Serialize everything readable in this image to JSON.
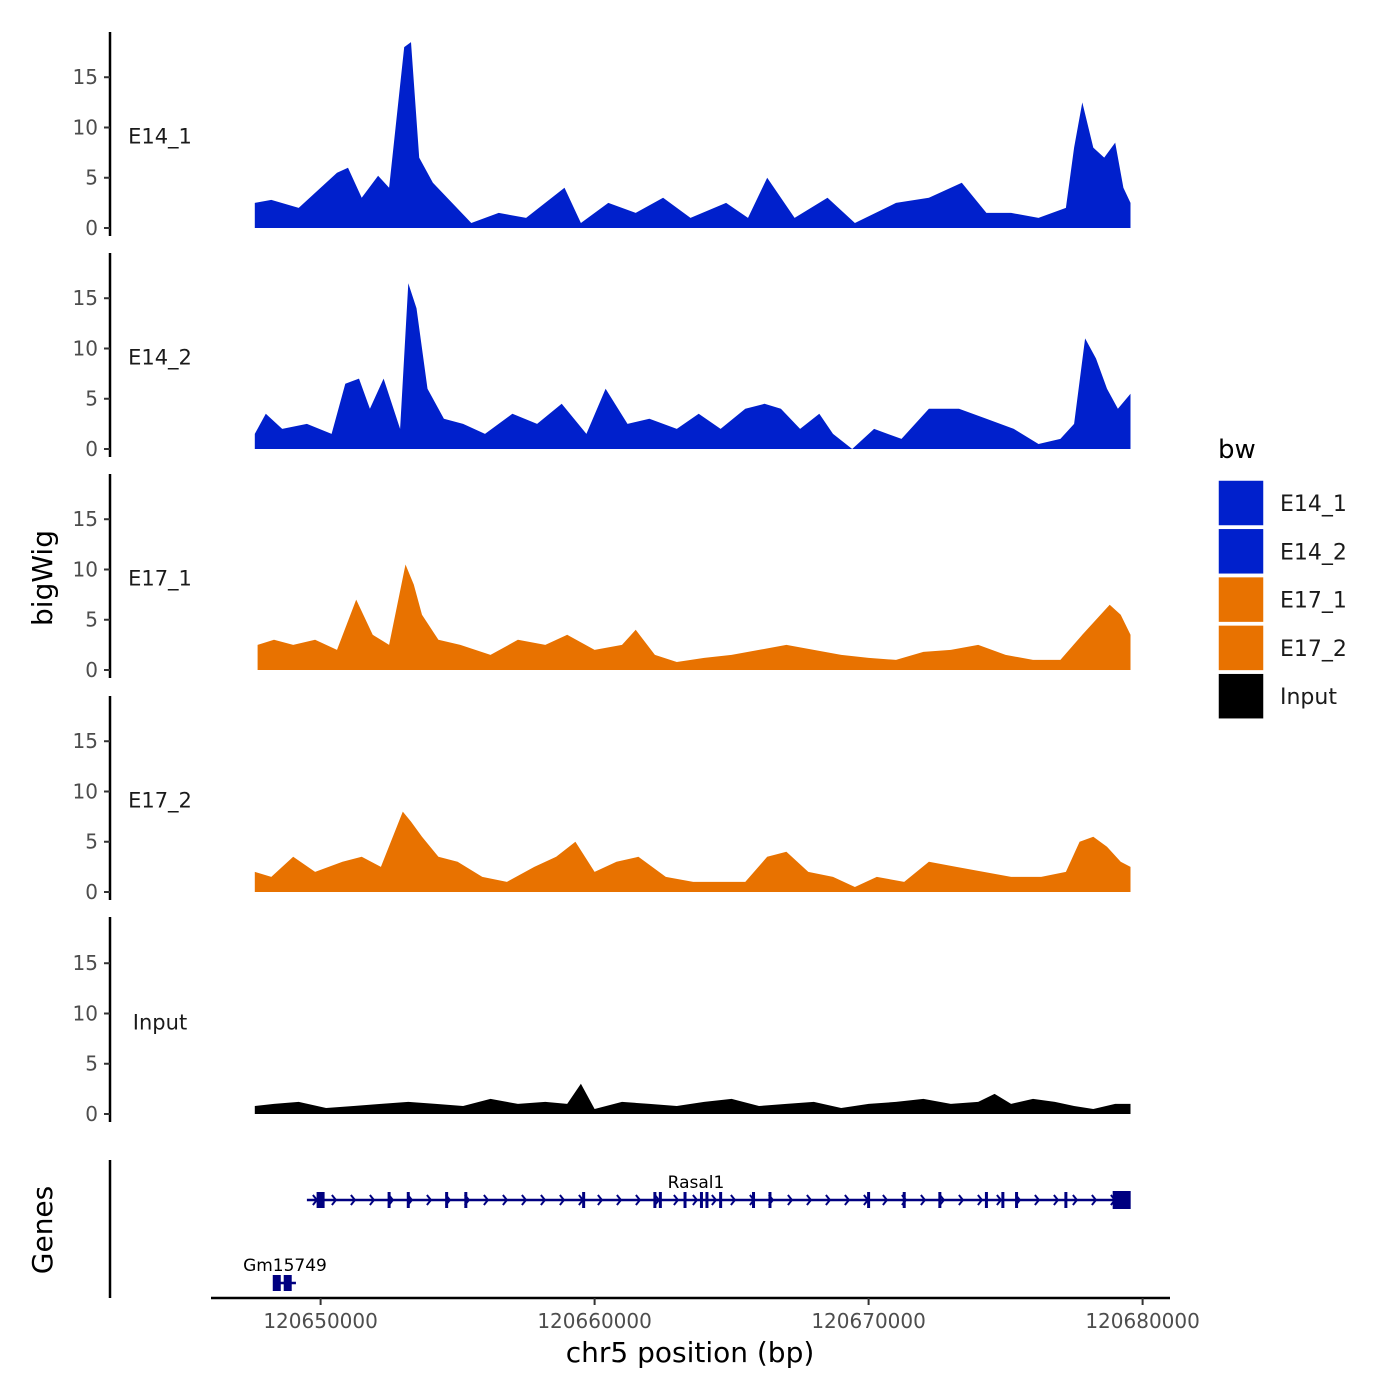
{
  "chart_data": {
    "type": "area",
    "subtype": "genome-track-plot",
    "xlabel": "chr5 position (bp)",
    "ylabel": "bigWig",
    "genes_label": "Genes",
    "xlim": [
      120646000,
      120681000
    ],
    "x_ticks": [
      120650000,
      120660000,
      120670000,
      120680000
    ],
    "x_tick_labels": [
      "120650000",
      "120660000",
      "120670000",
      "120680000"
    ],
    "ylim": [
      0,
      19.5
    ],
    "y_ticks": [
      0,
      5,
      10,
      15
    ],
    "y_tick_labels": [
      "0",
      "5",
      "10",
      "15"
    ],
    "legend": {
      "title": "bw",
      "entries": [
        {
          "label": "E14_1",
          "color": "#0020CC"
        },
        {
          "label": "E14_2",
          "color": "#0020CC"
        },
        {
          "label": "E17_1",
          "color": "#E87200"
        },
        {
          "label": "E17_2",
          "color": "#E87200"
        },
        {
          "label": "Input",
          "color": "#000000"
        }
      ]
    },
    "series": [
      {
        "name": "E14_1",
        "color": "#0020CC",
        "x": [
          120647600,
          120648200,
          120649200,
          120650600,
          120651000,
          120651500,
          120652100,
          120652500,
          120653050,
          120653300,
          120653600,
          120654100,
          120654800,
          120655500,
          120656500,
          120657500,
          120658900,
          120659500,
          120660500,
          120661500,
          120662500,
          120663500,
          120664800,
          120665600,
          120666300,
          120667300,
          120668500,
          120669500,
          120671000,
          120672200,
          120673400,
          120674300,
          120675200,
          120676200,
          120677200,
          120677500,
          120677800,
          120678200,
          120678600,
          120679000,
          120679300,
          120679560
        ],
        "y": [
          2.5,
          2.8,
          2.0,
          5.5,
          6.0,
          3.0,
          5.2,
          4.0,
          18.0,
          18.5,
          7.0,
          4.5,
          2.5,
          0.5,
          1.5,
          1.0,
          4.0,
          0.5,
          2.5,
          1.5,
          3.0,
          1.0,
          2.5,
          1.0,
          5.0,
          1.0,
          3.0,
          0.5,
          2.5,
          3.0,
          4.5,
          1.5,
          1.5,
          1.0,
          2.0,
          8.0,
          12.5,
          8.0,
          7.0,
          8.5,
          4.0,
          2.5
        ]
      },
      {
        "name": "E14_2",
        "color": "#0020CC",
        "x": [
          120647600,
          120648000,
          120648600,
          120649500,
          120650400,
          120650900,
          120651400,
          120651800,
          120652300,
          120652900,
          120653200,
          120653500,
          120653900,
          120654500,
          120655200,
          120656000,
          120657000,
          120657900,
          120658800,
          120659700,
          120660400,
          120661200,
          120662000,
          120663000,
          120663800,
          120664600,
          120665500,
          120666200,
          120666800,
          120667500,
          120668200,
          120668700,
          120669400,
          120670200,
          120671200,
          120672200,
          120673300,
          120674300,
          120675300,
          120676200,
          120677000,
          120677500,
          120677900,
          120678300,
          120678700,
          120679100,
          120679560
        ],
        "y": [
          1.5,
          3.5,
          2.0,
          2.5,
          1.5,
          6.5,
          7.0,
          4.0,
          7.0,
          2.0,
          16.5,
          14.0,
          6.0,
          3.0,
          2.5,
          1.5,
          3.5,
          2.5,
          4.5,
          1.5,
          6.0,
          2.5,
          3.0,
          2.0,
          3.5,
          2.0,
          4.0,
          4.5,
          4.0,
          2.0,
          3.5,
          1.5,
          0.0,
          2.0,
          1.0,
          4.0,
          4.0,
          3.0,
          2.0,
          0.5,
          1.0,
          2.5,
          11.0,
          9.0,
          6.0,
          4.0,
          5.5
        ]
      },
      {
        "name": "E17_1",
        "color": "#E87200",
        "x": [
          120647700,
          120648300,
          120649000,
          120649800,
          120650600,
          120651300,
          120651900,
          120652500,
          120653100,
          120653400,
          120653700,
          120654300,
          120655100,
          120656200,
          120657200,
          120658200,
          120659000,
          120660000,
          120661000,
          120661500,
          120662200,
          120663000,
          120664000,
          120665000,
          120666000,
          120667000,
          120668000,
          120669000,
          120670000,
          120671000,
          120672000,
          120673000,
          120674000,
          120675000,
          120676000,
          120677000,
          120677800,
          120678300,
          120678800,
          120679200,
          120679560
        ],
        "y": [
          2.5,
          3.0,
          2.5,
          3.0,
          2.0,
          7.0,
          3.5,
          2.5,
          10.5,
          8.5,
          5.5,
          3.0,
          2.5,
          1.5,
          3.0,
          2.5,
          3.5,
          2.0,
          2.5,
          4.0,
          1.5,
          0.8,
          1.2,
          1.5,
          2.0,
          2.5,
          2.0,
          1.5,
          1.2,
          1.0,
          1.8,
          2.0,
          2.5,
          1.5,
          1.0,
          1.0,
          3.5,
          5.0,
          6.5,
          5.5,
          3.5
        ]
      },
      {
        "name": "E17_2",
        "color": "#E87200",
        "x": [
          120647600,
          120648200,
          120649000,
          120649800,
          120650800,
          120651500,
          120652200,
          120653000,
          120653300,
          120653700,
          120654300,
          120655000,
          120655900,
          120656800,
          120657800,
          120658600,
          120659300,
          120660000,
          120660800,
          120661600,
          120662600,
          120663600,
          120664600,
          120665500,
          120666300,
          120667000,
          120667800,
          120668700,
          120669500,
          120670300,
          120671300,
          120672200,
          120673200,
          120674200,
          120675200,
          120676300,
          120677200,
          120677700,
          120678200,
          120678700,
          120679200,
          120679560
        ],
        "y": [
          2.0,
          1.5,
          3.5,
          2.0,
          3.0,
          3.5,
          2.5,
          8.0,
          7.0,
          5.5,
          3.5,
          3.0,
          1.5,
          1.0,
          2.5,
          3.5,
          5.0,
          2.0,
          3.0,
          3.5,
          1.5,
          1.0,
          1.0,
          1.0,
          3.5,
          4.0,
          2.0,
          1.5,
          0.5,
          1.5,
          1.0,
          3.0,
          2.5,
          2.0,
          1.5,
          1.5,
          2.0,
          5.0,
          5.5,
          4.5,
          3.0,
          2.5
        ]
      },
      {
        "name": "Input",
        "color": "#000000",
        "x": [
          120647600,
          120648300,
          120649200,
          120650200,
          120651200,
          120652200,
          120653200,
          120654200,
          120655200,
          120656200,
          120657200,
          120658200,
          120659000,
          120659500,
          120660000,
          120661000,
          120662000,
          120663000,
          120664000,
          120665000,
          120666000,
          120667000,
          120668000,
          120669000,
          120670000,
          120671000,
          120672000,
          120673000,
          120674000,
          120674600,
          120675200,
          120676000,
          120676800,
          120677500,
          120678200,
          120679000,
          120679560
        ],
        "y": [
          0.8,
          1.0,
          1.2,
          0.6,
          0.8,
          1.0,
          1.2,
          1.0,
          0.8,
          1.5,
          1.0,
          1.2,
          1.0,
          3.0,
          0.5,
          1.2,
          1.0,
          0.8,
          1.2,
          1.5,
          0.8,
          1.0,
          1.2,
          0.6,
          1.0,
          1.2,
          1.5,
          1.0,
          1.2,
          2.0,
          1.0,
          1.5,
          1.2,
          0.8,
          0.5,
          1.0,
          1.0
        ]
      }
    ],
    "genes": [
      {
        "name": "Rasal1",
        "start": 120649500,
        "end": 120679500,
        "strand": "+",
        "exons": [
          120650000,
          120652500,
          120653200,
          120654600,
          120655300,
          120659600,
          120662200,
          120662400,
          120663300,
          120663900,
          120664100,
          120664600,
          120665800,
          120666400,
          120670000,
          120671300,
          120672600,
          120674300,
          120674900,
          120675400,
          120677200,
          120679200
        ]
      },
      {
        "name": "Gm15749",
        "start": 120648300,
        "end": 120649100,
        "strand": "-",
        "exons": [
          120648400,
          120648800
        ]
      }
    ]
  }
}
